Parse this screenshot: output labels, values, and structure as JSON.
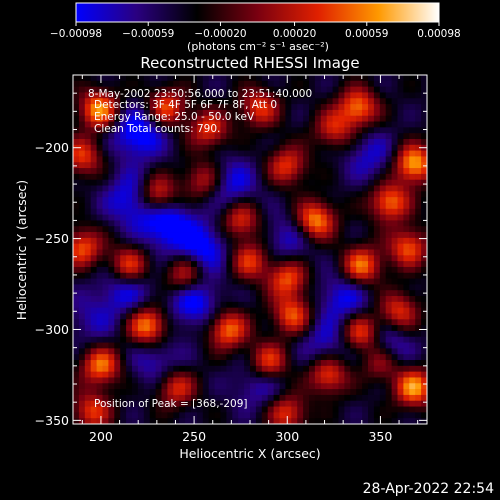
{
  "chart_data": {
    "type": "heatmap",
    "title": "Reconstructed RHESSI Image",
    "xlabel": "Heliocentric X (arcsec)",
    "ylabel": "Heliocentric Y (arcsec)",
    "xlim": [
      185,
      375
    ],
    "ylim": [
      -352,
      -160
    ],
    "xticks": [
      {
        "value": 200,
        "label": "200"
      },
      {
        "value": 250,
        "label": "250"
      },
      {
        "value": 300,
        "label": "300"
      },
      {
        "value": 350,
        "label": "350"
      }
    ],
    "yticks": [
      {
        "value": -200,
        "label": "−200"
      },
      {
        "value": -250,
        "label": "−250"
      },
      {
        "value": -300,
        "label": "−300"
      },
      {
        "value": -350,
        "label": "−350"
      }
    ],
    "colorbar": {
      "range": [
        -0.00098,
        0.00098
      ],
      "tick_values": [
        -0.00098,
        -0.00059,
        -0.0002,
        0.0002,
        0.00059,
        0.00098
      ],
      "tick_labels": [
        "−0.00098",
        "−0.00059",
        "−0.00020",
        "0.00020",
        "0.00059",
        "0.00098"
      ],
      "unit_label": "(photons cm⁻² s⁻¹ asec⁻²)",
      "colormap_stops": [
        "#0000ff",
        "#2a0080",
        "#000000",
        "#7a0010",
        "#e02000",
        "#ff9900",
        "#ffffff"
      ]
    },
    "annotations": [
      "8-May-2002 23:50:56.000 to 23:51:40.000",
      "Detectors: 3F 4F 5F 6F 7F 8F, Att 0",
      "Energy Range: 25.0 - 50.0 keV",
      "Clean    Total counts: 790."
    ],
    "peak_label": "Position of Peak = [368,-209]",
    "peak": {
      "x": 368,
      "y": -209
    },
    "hotspots": [
      {
        "x": 199,
        "y": -179,
        "v": 0.0009
      },
      {
        "x": 235,
        "y": -178,
        "v": 0.0007
      },
      {
        "x": 258,
        "y": -190,
        "v": 0.0006
      },
      {
        "x": 285,
        "y": -178,
        "v": 0.0006
      },
      {
        "x": 300,
        "y": -210,
        "v": 0.0006
      },
      {
        "x": 338,
        "y": -178,
        "v": 0.0008
      },
      {
        "x": 368,
        "y": -209,
        "v": 0.00098
      },
      {
        "x": 355,
        "y": -230,
        "v": 0.0008
      },
      {
        "x": 230,
        "y": -226,
        "v": 0.0008
      },
      {
        "x": 275,
        "y": -240,
        "v": 0.0006
      },
      {
        "x": 315,
        "y": -240,
        "v": 0.0009
      },
      {
        "x": 190,
        "y": -255,
        "v": 0.0007
      },
      {
        "x": 215,
        "y": -265,
        "v": 0.0007
      },
      {
        "x": 245,
        "y": -270,
        "v": 0.0006
      },
      {
        "x": 300,
        "y": -272,
        "v": 0.0007
      },
      {
        "x": 340,
        "y": -265,
        "v": 0.0008
      },
      {
        "x": 365,
        "y": -255,
        "v": 0.0007
      },
      {
        "x": 225,
        "y": -298,
        "v": 0.0009
      },
      {
        "x": 268,
        "y": -300,
        "v": 0.0008
      },
      {
        "x": 303,
        "y": -292,
        "v": 0.0007
      },
      {
        "x": 340,
        "y": -302,
        "v": 0.0008
      },
      {
        "x": 360,
        "y": -290,
        "v": 0.0006
      },
      {
        "x": 200,
        "y": -320,
        "v": 0.0008
      },
      {
        "x": 240,
        "y": -332,
        "v": 0.0006
      },
      {
        "x": 290,
        "y": -318,
        "v": 0.0007
      },
      {
        "x": 322,
        "y": -325,
        "v": 0.0007
      },
      {
        "x": 368,
        "y": -332,
        "v": 0.0009
      },
      {
        "x": 350,
        "y": -318,
        "v": 0.0006
      },
      {
        "x": 195,
        "y": -345,
        "v": 0.0006
      },
      {
        "x": 300,
        "y": -346,
        "v": 0.0006
      },
      {
        "x": 280,
        "y": -262,
        "v": 0.0006
      },
      {
        "x": 255,
        "y": -218,
        "v": 0.0005
      },
      {
        "x": 325,
        "y": -190,
        "v": 0.0005
      },
      {
        "x": 190,
        "y": -205,
        "v": 0.0006
      }
    ],
    "coldspots": [
      {
        "x": 220,
        "y": -192,
        "v": -0.0008
      },
      {
        "x": 217,
        "y": -228,
        "v": -0.0007
      },
      {
        "x": 235,
        "y": -242,
        "v": -0.0008
      },
      {
        "x": 255,
        "y": -255,
        "v": -0.0007
      },
      {
        "x": 213,
        "y": -278,
        "v": -0.0006
      },
      {
        "x": 250,
        "y": -285,
        "v": -0.0007
      },
      {
        "x": 270,
        "y": -220,
        "v": -0.0006
      },
      {
        "x": 300,
        "y": -250,
        "v": -0.0005
      },
      {
        "x": 330,
        "y": -283,
        "v": -0.0006
      },
      {
        "x": 352,
        "y": -310,
        "v": -0.0007
      },
      {
        "x": 320,
        "y": -308,
        "v": -0.0005
      },
      {
        "x": 285,
        "y": -330,
        "v": -0.0005
      },
      {
        "x": 230,
        "y": -318,
        "v": -0.0005
      },
      {
        "x": 195,
        "y": -295,
        "v": -0.0004
      },
      {
        "x": 345,
        "y": -205,
        "v": -0.0005
      }
    ]
  },
  "footer_timestamp": "28-Apr-2022 22:54"
}
